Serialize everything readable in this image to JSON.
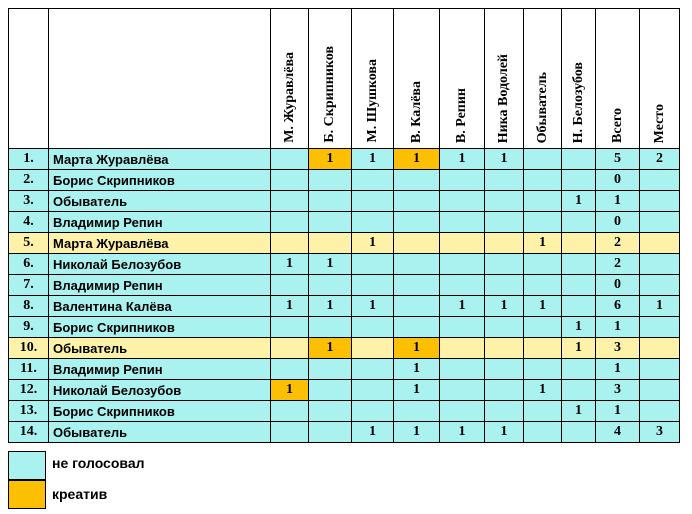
{
  "colors": {
    "not_voted": "#aaf2f0",
    "creative": "#fdbf02",
    "highlight_row": "#fdf2a8"
  },
  "columns": [
    "М. Журавлёва",
    "Б. Скрипников",
    "М. Шушкова",
    "В. Калёва",
    "В. Репин",
    "Ника Водолей",
    "Обыватель",
    "Н. Белозубов",
    "Всего",
    "Место"
  ],
  "rows": [
    {
      "num": "1.",
      "name": "Марта Журавлёва",
      "highlight": false,
      "cells": [
        "",
        "1",
        "1",
        "1",
        "1",
        "1",
        "",
        "",
        "5",
        "2"
      ],
      "creative": [
        1,
        3
      ]
    },
    {
      "num": "2.",
      "name": "Борис Скрипников",
      "highlight": false,
      "cells": [
        "",
        "",
        "",
        "",
        "",
        "",
        "",
        "",
        "0",
        ""
      ],
      "creative": []
    },
    {
      "num": "3.",
      "name": "Обыватель",
      "highlight": false,
      "cells": [
        "",
        "",
        "",
        "",
        "",
        "",
        "",
        "1",
        "1",
        ""
      ],
      "creative": []
    },
    {
      "num": "4.",
      "name": "Владимир Репин",
      "highlight": false,
      "cells": [
        "",
        "",
        "",
        "",
        "",
        "",
        "",
        "",
        "0",
        ""
      ],
      "creative": []
    },
    {
      "num": "5.",
      "name": "Марта Журавлёва",
      "highlight": true,
      "cells": [
        "",
        "",
        "1",
        "",
        "",
        "",
        "1",
        "",
        "2",
        ""
      ],
      "creative": []
    },
    {
      "num": "6.",
      "name": "Николай Белозубов",
      "highlight": false,
      "cells": [
        "1",
        "1",
        "",
        "",
        "",
        "",
        "",
        "",
        "2",
        ""
      ],
      "creative": []
    },
    {
      "num": "7.",
      "name": "Владимир Репин",
      "highlight": false,
      "cells": [
        "",
        "",
        "",
        "",
        "",
        "",
        "",
        "",
        "0",
        ""
      ],
      "creative": []
    },
    {
      "num": "8.",
      "name": "Валентина Калёва",
      "highlight": false,
      "cells": [
        "1",
        "1",
        "1",
        "",
        "1",
        "1",
        "1",
        "",
        "6",
        "1"
      ],
      "creative": []
    },
    {
      "num": "9.",
      "name": "Борис Скрипников",
      "highlight": false,
      "cells": [
        "",
        "",
        "",
        "",
        "",
        "",
        "",
        "1",
        "1",
        ""
      ],
      "creative": []
    },
    {
      "num": "10.",
      "name": "Обыватель",
      "highlight": true,
      "cells": [
        "",
        "1",
        "",
        "1",
        "",
        "",
        "",
        "1",
        "3",
        ""
      ],
      "creative": [
        1,
        3
      ]
    },
    {
      "num": "11.",
      "name": "Владимир Репин",
      "highlight": false,
      "cells": [
        "",
        "",
        "",
        "1",
        "",
        "",
        "",
        "",
        "1",
        ""
      ],
      "creative": []
    },
    {
      "num": "12.",
      "name": "Николай Белозубов",
      "highlight": false,
      "cells": [
        "1",
        "",
        "",
        "1",
        "",
        "",
        "1",
        "",
        "3",
        ""
      ],
      "creative": [
        0
      ]
    },
    {
      "num": "13.",
      "name": "Борис Скрипников",
      "highlight": false,
      "cells": [
        "",
        "",
        "",
        "",
        "",
        "",
        "",
        "1",
        "1",
        ""
      ],
      "creative": []
    },
    {
      "num": "14.",
      "name": "Обыватель",
      "highlight": false,
      "cells": [
        "",
        "",
        "1",
        "1",
        "1",
        "1",
        "",
        "",
        "4",
        "3"
      ],
      "creative": []
    }
  ],
  "legend": {
    "not_voted_label": "не голосовал",
    "creative_label": "креатив"
  }
}
